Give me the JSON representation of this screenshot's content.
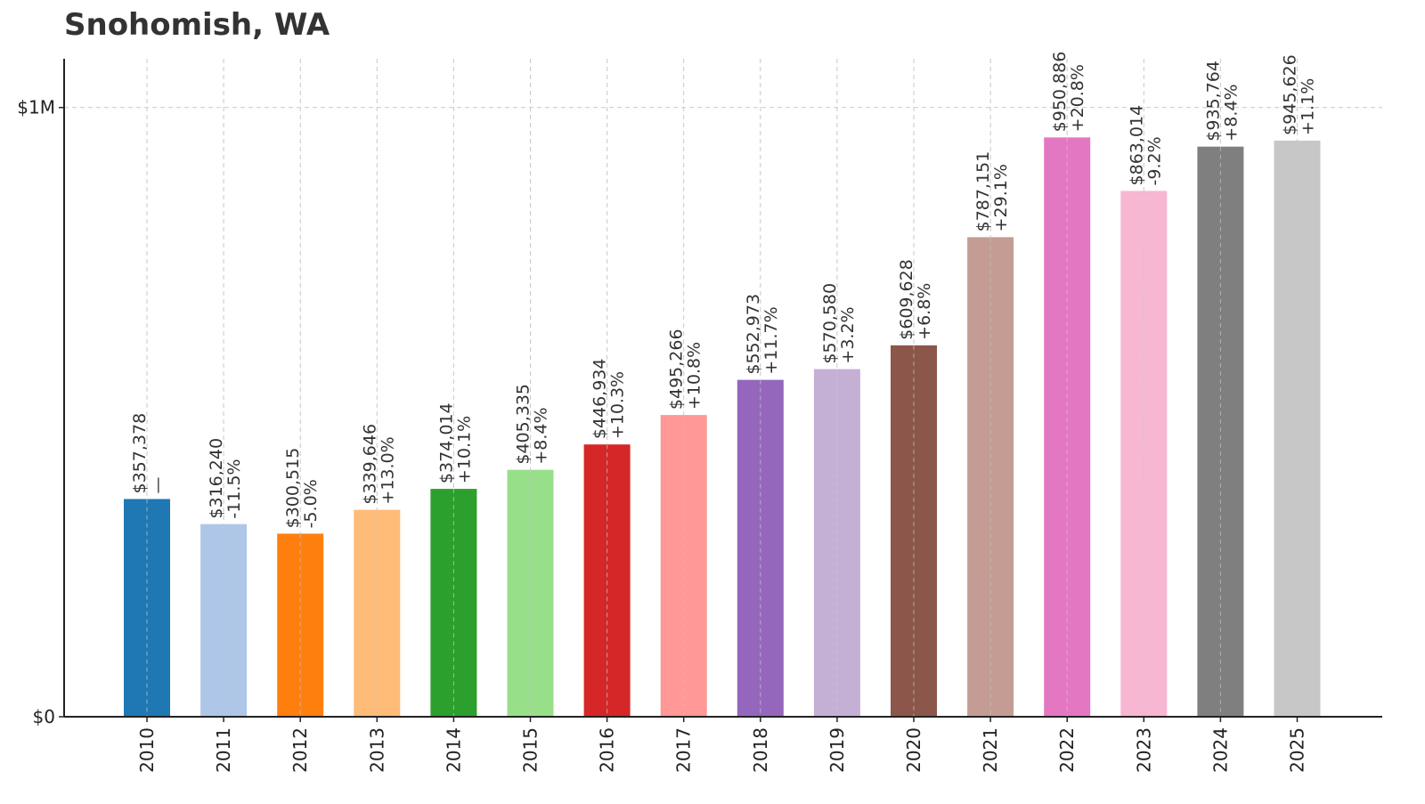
{
  "chart_data": {
    "type": "bar",
    "title": "Snohomish, WA",
    "xlabel": "",
    "ylabel": "",
    "ylim": [
      0,
      1080000
    ],
    "yticks": [
      {
        "value": 0,
        "label": "$0"
      },
      {
        "value": 1000000,
        "label": "$1M"
      }
    ],
    "grid": true,
    "categories": [
      "2010",
      "2011",
      "2012",
      "2013",
      "2014",
      "2015",
      "2016",
      "2017",
      "2018",
      "2019",
      "2020",
      "2021",
      "2022",
      "2023",
      "2024",
      "2025"
    ],
    "values": [
      357378,
      316240,
      300515,
      339646,
      374014,
      405335,
      446934,
      495266,
      552973,
      570580,
      609628,
      787151,
      950886,
      863014,
      935764,
      945626
    ],
    "value_labels": [
      "$357,378",
      "$316,240",
      "$300,515",
      "$339,646",
      "$374,014",
      "$405,335",
      "$446,934",
      "$495,266",
      "$552,973",
      "$570,580",
      "$609,628",
      "$787,151",
      "$950,886",
      "$863,014",
      "$935,764",
      "$945,626"
    ],
    "change_labels": [
      "—",
      "-11.5%",
      "-5.0%",
      "+13.0%",
      "+10.1%",
      "+8.4%",
      "+10.3%",
      "+10.8%",
      "+11.7%",
      "+3.2%",
      "+6.8%",
      "+29.1%",
      "+20.8%",
      "-9.2%",
      "+8.4%",
      "+1.1%"
    ],
    "colors": [
      "#1f77b4",
      "#aec7e8",
      "#ff7f0e",
      "#ffbb78",
      "#2ca02c",
      "#98df8a",
      "#d62728",
      "#ff9896",
      "#9467bd",
      "#c5b0d5",
      "#8c564b",
      "#c49c94",
      "#e377c2",
      "#f7b6d2",
      "#7f7f7f",
      "#c7c7c7"
    ]
  }
}
